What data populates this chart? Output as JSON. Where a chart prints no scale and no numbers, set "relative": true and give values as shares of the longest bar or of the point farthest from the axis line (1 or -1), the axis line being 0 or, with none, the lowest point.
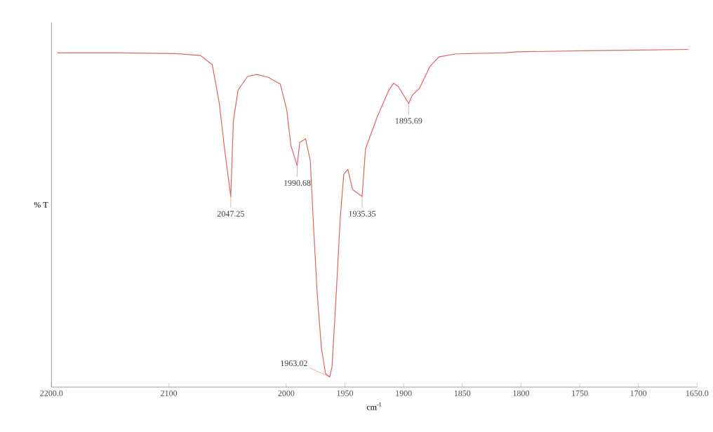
{
  "chart_data": {
    "type": "line",
    "xlabel": "cm$^{-1}$",
    "ylabel": "% T",
    "relative": true,
    "color": "#e06464",
    "x": [
      2195,
      2145,
      2095,
      2073,
      2063,
      2057,
      2052,
      2047.25,
      2045,
      2041,
      2033,
      2025,
      2015,
      2005,
      1999.5,
      1996,
      1990.68,
      1988.5,
      1983.5,
      1979.5,
      1976.5,
      1973.5,
      1970,
      1966.5,
      1963.02,
      1961,
      1957.5,
      1954,
      1951,
      1947.5,
      1943.5,
      1935.35,
      1932.5,
      1922.5,
      1912.5,
      1908.5,
      1904.5,
      1895.69,
      1892.5,
      1886.5,
      1877.5,
      1870,
      1855,
      1815,
      1802.5,
      1747.5,
      1697.5,
      1657.5
    ],
    "values": [
      0.99,
      0.99,
      0.988,
      0.982,
      0.955,
      0.84,
      0.69,
      0.565,
      0.79,
      0.88,
      0.92,
      0.926,
      0.917,
      0.897,
      0.82,
      0.715,
      0.656,
      0.725,
      0.735,
      0.67,
      0.46,
      0.27,
      0.115,
      0.04,
      0.03,
      0.06,
      0.27,
      0.5,
      0.63,
      0.645,
      0.585,
      0.565,
      0.705,
      0.8,
      0.88,
      0.9,
      0.89,
      0.84,
      0.865,
      0.885,
      0.95,
      0.978,
      0.987,
      0.99,
      0.993,
      0.996,
      0.998,
      1.0
    ],
    "xlim": [
      2200,
      1650
    ],
    "xticks": [
      {
        "value": 2200,
        "label": "2200.0"
      },
      2100,
      2000,
      1950,
      1900,
      1850,
      1800,
      1750,
      1700,
      {
        "value": 1650,
        "label": "1650.0"
      }
    ],
    "tick_labels": "x",
    "annotations": [
      {
        "text": "2047.25",
        "x": 2047.25,
        "y": 0.565
      },
      {
        "text": "1990.68",
        "x": 1990.68,
        "y": 0.656
      },
      {
        "text": "1963.02",
        "x": 1963.02,
        "y": 0.03
      },
      {
        "text": "1935.35",
        "x": 1935.35,
        "y": 0.565
      },
      {
        "text": "1895.69",
        "x": 1895.69,
        "y": 0.84
      }
    ]
  }
}
